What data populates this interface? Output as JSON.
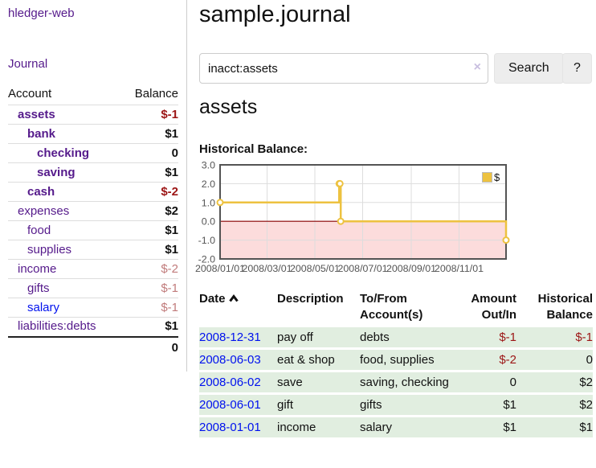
{
  "colors": {
    "link_purple": "#551a8b",
    "link_blue": "#0011ee",
    "negative_strong": "#9c1515",
    "negative_soft": "#c17b7b",
    "row_green": "#e1eee0",
    "series_gold": "#edc240"
  },
  "sidebar": {
    "app_title": "hledger-web",
    "journal_link": "Journal",
    "accounts": {
      "header": {
        "account": "Account",
        "balance": "Balance"
      },
      "rows": [
        {
          "name": "assets",
          "balance": "$-1",
          "style": "lvl1 bold",
          "balance_style": "neg-strong"
        },
        {
          "name": "bank",
          "balance": "$1",
          "style": "lvl2 bold",
          "balance_style": "pos"
        },
        {
          "name": "checking",
          "balance": "0",
          "style": "lvl3 bold",
          "balance_style": "pos"
        },
        {
          "name": "saving",
          "balance": "$1",
          "style": "lvl3 bold",
          "balance_style": "pos"
        },
        {
          "name": "cash",
          "balance": "$-2",
          "style": "lvl2 bold",
          "balance_style": "neg-strong"
        },
        {
          "name": "expenses",
          "balance": "$2",
          "style": "lvl1",
          "balance_style": "pos"
        },
        {
          "name": "food",
          "balance": "$1",
          "style": "lvl2",
          "balance_style": "pos"
        },
        {
          "name": "supplies",
          "balance": "$1",
          "style": "lvl2",
          "balance_style": "pos"
        },
        {
          "name": "income",
          "balance": "$-2",
          "style": "lvl1",
          "balance_style": "neg-soft"
        },
        {
          "name": "gifts",
          "balance": "$-1",
          "style": "lvl2",
          "balance_style": "neg-soft"
        },
        {
          "name": "salary",
          "balance": "$-1",
          "style": "lvl2 blue-link",
          "balance_style": "neg-soft"
        },
        {
          "name": "liabilities:debts",
          "balance": "$1",
          "style": "lvl1",
          "balance_style": "pos",
          "row_style": "last-acct"
        }
      ],
      "total": "0"
    }
  },
  "main": {
    "journal_title": "sample.journal",
    "search": {
      "value": "inacct:assets",
      "clear_icon": "×",
      "search_button": "Search",
      "help_button": "?"
    },
    "account_heading": "assets",
    "chart_title": "Historical Balance:",
    "register": {
      "headers": {
        "date": "Date",
        "description": "Description",
        "tofrom": "To/From Account(s)",
        "amount": "Amount Out/In",
        "balance": "Historical Balance"
      },
      "rows": [
        {
          "date": "2008-12-31",
          "description": "pay off",
          "tofrom": "debts",
          "amount": "$-1",
          "amount_style": "neg",
          "balance": "$-1",
          "balance_style": "neg"
        },
        {
          "date": "2008-06-03",
          "description": "eat & shop",
          "tofrom": "food, supplies",
          "amount": "$-2",
          "amount_style": "neg",
          "balance": "0",
          "balance_style": "pos"
        },
        {
          "date": "2008-06-02",
          "description": "save",
          "tofrom": "saving, checking",
          "amount": "0",
          "amount_style": "pos",
          "balance": "$2",
          "balance_style": "pos"
        },
        {
          "date": "2008-06-01",
          "description": "gift",
          "tofrom": "gifts",
          "amount": "$1",
          "amount_style": "pos",
          "balance": "$2",
          "balance_style": "pos"
        },
        {
          "date": "2008-01-01",
          "description": "income",
          "tofrom": "salary",
          "amount": "$1",
          "amount_style": "pos",
          "balance": "$1",
          "balance_style": "pos"
        }
      ]
    }
  },
  "chart_data": {
    "type": "line",
    "step": true,
    "title": "Historical Balance:",
    "series": [
      {
        "name": "$",
        "color": "#edc240",
        "points": [
          [
            "2008-01-01",
            1
          ],
          [
            "2008-06-01",
            2
          ],
          [
            "2008-06-02",
            2
          ],
          [
            "2008-06-03",
            0
          ],
          [
            "2008-12-31",
            -1
          ]
        ]
      }
    ],
    "ylim": [
      -2,
      3
    ],
    "yticks": [
      {
        "v": 3,
        "label": "3.0"
      },
      {
        "v": 2,
        "label": "2.0"
      },
      {
        "v": 1,
        "label": "1.0"
      },
      {
        "v": 0,
        "label": "0.0"
      },
      {
        "v": -1,
        "label": "-1.0"
      },
      {
        "v": -2,
        "label": "-2.0"
      }
    ],
    "xrange": [
      "2008-01-01",
      "2008-12-31"
    ],
    "xticks": [
      {
        "v": "2008-01-01",
        "label": "2008/01/01"
      },
      {
        "v": "2008-03-01",
        "label": "2008/03/01"
      },
      {
        "v": "2008-05-01",
        "label": "2008/05/01"
      },
      {
        "v": "2008-07-01",
        "label": "2008/07/01"
      },
      {
        "v": "2008-09-01",
        "label": "2008/09/01"
      },
      {
        "v": "2008-11-01",
        "label": "2008/11/01"
      }
    ],
    "legend_position": "top-right",
    "grid": true,
    "grid_color": "#dddddd",
    "border_color": "#545454",
    "zero_line_color": "#8b0000",
    "negative_fill": "#fcdcdc"
  }
}
